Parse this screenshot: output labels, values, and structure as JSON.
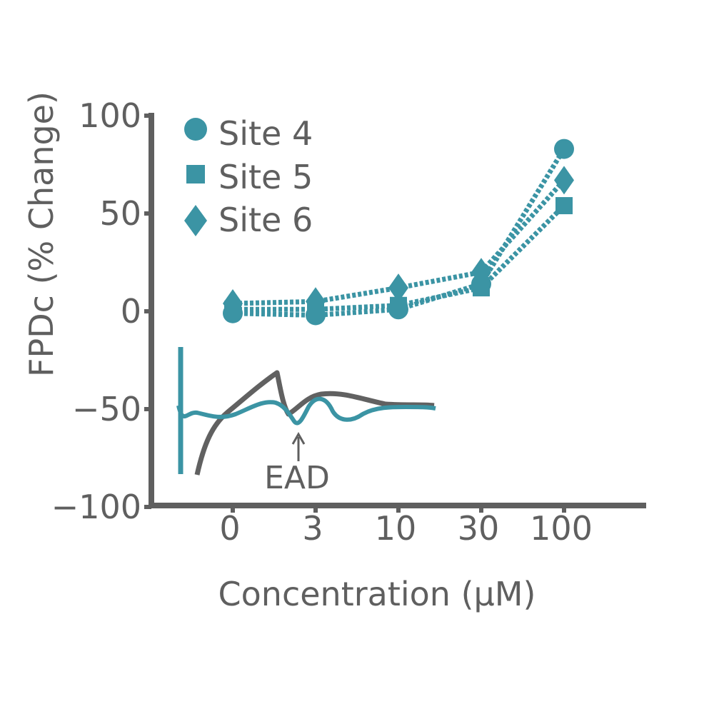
{
  "chart_data": {
    "type": "line",
    "xlabel": "Concentration (μM)",
    "ylabel": "FPDc (% Change)",
    "categories": [
      "0",
      "3",
      "10",
      "30",
      "100"
    ],
    "ylim": [
      -100,
      100
    ],
    "yticks": [
      100,
      50,
      0,
      -50,
      -100
    ],
    "ytick_labels": [
      "100",
      "50",
      "0",
      "−50",
      "−100"
    ],
    "grid": false,
    "legend_position": "top-left",
    "series": [
      {
        "name": "Site 4",
        "marker": "circle",
        "values": [
          -1,
          -2,
          1,
          14,
          83
        ]
      },
      {
        "name": "Site 5",
        "marker": "square",
        "values": [
          1,
          1,
          3,
          12,
          54
        ]
      },
      {
        "name": "Site 6",
        "marker": "diamond",
        "values": [
          4,
          5,
          12,
          20,
          67
        ]
      }
    ],
    "annotations": [
      {
        "text": "EAD",
        "arrow": true
      }
    ],
    "colors": {
      "series": "#3b94a4",
      "axis": "#5f5f5f",
      "trace_dark": "#616161",
      "trace_teal": "#3b94a4"
    }
  }
}
